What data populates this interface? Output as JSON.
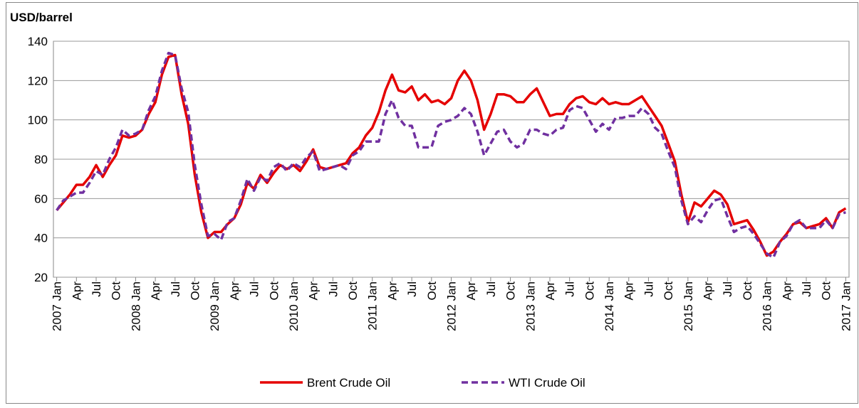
{
  "chart_data": {
    "type": "line",
    "y_axis_title": "USD/barrel",
    "categories": [
      "2007 Jan",
      null,
      null,
      "Apr",
      null,
      null,
      "Jul",
      null,
      null,
      "Oct",
      null,
      null,
      "2008 Jan",
      null,
      null,
      "Apr",
      null,
      null,
      "Jul",
      null,
      null,
      "Oct",
      null,
      null,
      "2009 Jan",
      null,
      null,
      "Apr",
      null,
      null,
      "Jul",
      null,
      null,
      "Oct",
      null,
      null,
      "2010 Jan",
      null,
      null,
      "Apr",
      null,
      null,
      "Jul",
      null,
      null,
      "Oct",
      null,
      null,
      "2011 Jan",
      null,
      null,
      "Apr",
      null,
      null,
      "Jul",
      null,
      null,
      "Oct",
      null,
      null,
      "2012 Jan",
      null,
      null,
      "Apr",
      null,
      null,
      "Jul",
      null,
      null,
      "Oct",
      null,
      null,
      "2013 Jan",
      null,
      null,
      "Apr",
      null,
      null,
      "Jul",
      null,
      null,
      "Oct",
      null,
      null,
      "2014 Jan",
      null,
      null,
      "Apr",
      null,
      null,
      "Jul",
      null,
      null,
      "Oct",
      null,
      null,
      "2015 Jan",
      null,
      null,
      "Apr",
      null,
      null,
      "Jul",
      null,
      null,
      "Oct",
      null,
      null,
      "2016 Jan",
      null,
      null,
      "Apr",
      null,
      null,
      "Jul",
      null,
      null,
      "Oct",
      null,
      null,
      "2017 Jan"
    ],
    "series": [
      {
        "name": "Brent Crude Oil",
        "color": "#e50000",
        "dash": false,
        "values": [
          54,
          58,
          62,
          67,
          67,
          71,
          77,
          71,
          77,
          82,
          92,
          91,
          92,
          95,
          103,
          109,
          123,
          132,
          133,
          113,
          98,
          72,
          53,
          40,
          43,
          43,
          47,
          50,
          57,
          68,
          65,
          72,
          68,
          73,
          77,
          75,
          77,
          74,
          79,
          85,
          76,
          75,
          76,
          77,
          78,
          83,
          86,
          92,
          96,
          104,
          115,
          123,
          115,
          114,
          117,
          110,
          113,
          109,
          110,
          108,
          111,
          120,
          125,
          120,
          110,
          95,
          103,
          113,
          113,
          112,
          109,
          109,
          113,
          116,
          109,
          102,
          103,
          103,
          108,
          111,
          112,
          109,
          108,
          111,
          108,
          109,
          108,
          108,
          110,
          112,
          107,
          102,
          97,
          88,
          79,
          62,
          48,
          58,
          56,
          60,
          64,
          62,
          57,
          47,
          48,
          49,
          44,
          38,
          31,
          33,
          38,
          42,
          47,
          48,
          45,
          46,
          47,
          50,
          45,
          53,
          55
        ]
      },
      {
        "name": "WTI Crude Oil",
        "color": "#7030a0",
        "dash": true,
        "values": [
          54,
          59,
          61,
          63,
          63,
          68,
          74,
          72,
          80,
          86,
          95,
          92,
          93,
          95,
          105,
          112,
          125,
          134,
          133,
          116,
          104,
          77,
          57,
          41,
          42,
          39,
          48,
          50,
          59,
          70,
          64,
          71,
          69,
          76,
          78,
          74,
          78,
          76,
          81,
          84,
          74,
          75,
          76,
          77,
          75,
          82,
          84,
          89,
          89,
          89,
          103,
          110,
          101,
          97,
          97,
          86,
          86,
          86,
          97,
          99,
          100,
          102,
          106,
          103,
          94,
          82,
          88,
          94,
          95,
          89,
          86,
          88,
          95,
          95,
          93,
          92,
          95,
          96,
          105,
          107,
          106,
          100,
          94,
          98,
          95,
          101,
          101,
          102,
          102,
          106,
          103,
          96,
          93,
          84,
          76,
          59,
          47,
          51,
          48,
          54,
          59,
          60,
          51,
          43,
          45,
          46,
          42,
          37,
          32,
          30,
          38,
          41,
          47,
          49,
          45,
          45,
          45,
          49,
          45,
          52,
          53
        ]
      }
    ],
    "ylim": [
      20,
      140
    ],
    "yticks": [
      20,
      40,
      60,
      80,
      100,
      120,
      140
    ],
    "grid": true,
    "legend": "bottom"
  }
}
